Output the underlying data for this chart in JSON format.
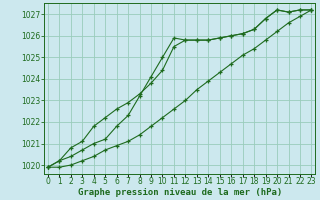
{
  "xlabel": "Graphe pression niveau de la mer (hPa)",
  "bg_color": "#cce8ee",
  "grid_color": "#99ccbb",
  "line_color": "#1e6b1e",
  "marker": "+",
  "hours": [
    0,
    1,
    2,
    3,
    4,
    5,
    6,
    7,
    8,
    9,
    10,
    11,
    12,
    13,
    14,
    15,
    16,
    17,
    18,
    19,
    20,
    21,
    22,
    23
  ],
  "series1": [
    1019.9,
    1020.2,
    1020.4,
    1020.7,
    1021.0,
    1021.2,
    1021.8,
    1022.3,
    1023.2,
    1024.1,
    1025.0,
    1025.9,
    1025.8,
    1025.8,
    1025.8,
    1025.9,
    1026.0,
    1026.1,
    1026.3,
    1026.8,
    1027.2,
    1027.1,
    1027.2,
    1027.2
  ],
  "series2": [
    1019.9,
    1020.2,
    1020.8,
    1021.1,
    1021.8,
    1022.2,
    1022.6,
    1022.9,
    1023.3,
    1023.8,
    1024.4,
    1025.5,
    1025.8,
    1025.8,
    1025.8,
    1025.9,
    1026.0,
    1026.1,
    1026.3,
    1026.8,
    1027.2,
    1027.1,
    1027.2,
    1027.2
  ],
  "series3": [
    1019.9,
    1019.9,
    1020.0,
    1020.2,
    1020.4,
    1020.7,
    1020.9,
    1021.1,
    1021.4,
    1021.8,
    1022.2,
    1022.6,
    1023.0,
    1023.5,
    1023.9,
    1024.3,
    1024.7,
    1025.1,
    1025.4,
    1025.8,
    1026.2,
    1026.6,
    1026.9,
    1027.2
  ],
  "ylim_min": 1019.6,
  "ylim_max": 1027.5,
  "yticks": [
    1020,
    1021,
    1022,
    1023,
    1024,
    1025,
    1026,
    1027
  ],
  "xlim_min": -0.3,
  "xlim_max": 23.3,
  "tick_fontsize": 5.5,
  "label_fontsize": 6.5
}
